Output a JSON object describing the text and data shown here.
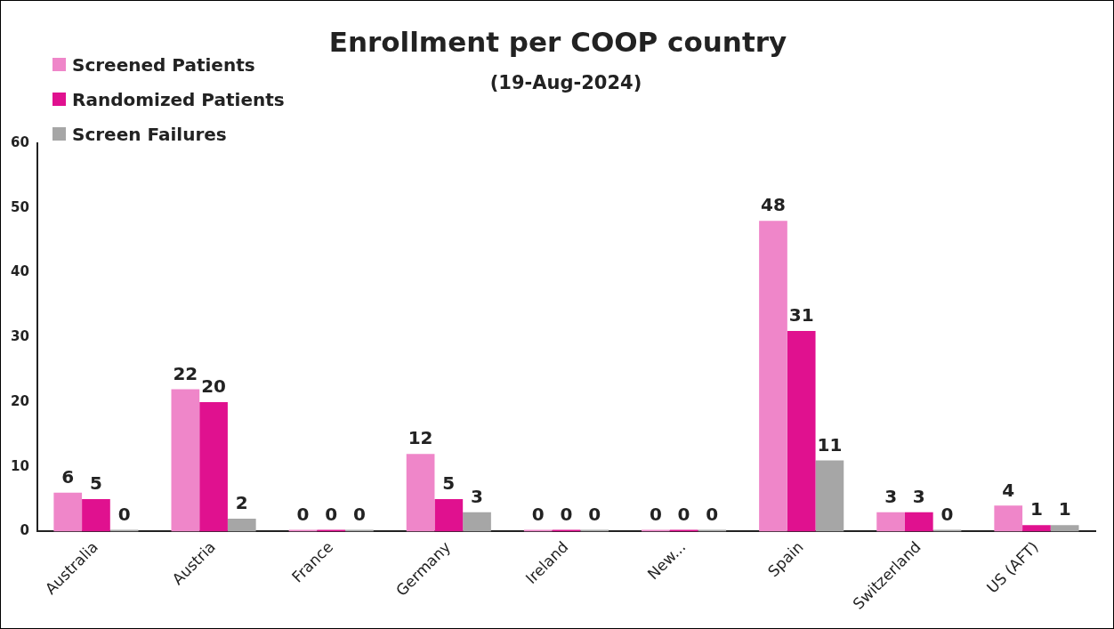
{
  "chart_data": {
    "type": "bar",
    "title": "Enrollment per COOP country",
    "subtitle": "(19-Aug-2024)",
    "categories": [
      "Australia",
      "Austria",
      "France",
      "Germany",
      "Ireland",
      "New...",
      "Spain",
      "Switzerland",
      "US (AFT)"
    ],
    "series": [
      {
        "name": "Screened Patients",
        "color": "#ef86c9",
        "values": [
          6,
          22,
          0,
          12,
          0,
          0,
          48,
          3,
          4
        ]
      },
      {
        "name": "Randomized Patients",
        "color": "#e0118f",
        "values": [
          5,
          20,
          0,
          5,
          0,
          0,
          31,
          3,
          1
        ]
      },
      {
        "name": "Screen Failures",
        "color": "#a6a6a6",
        "values": [
          0,
          2,
          0,
          3,
          0,
          0,
          11,
          0,
          1
        ]
      }
    ],
    "ylim": [
      0,
      60
    ],
    "yticks": [
      0,
      10,
      20,
      30,
      40,
      50,
      60
    ],
    "grid": false,
    "legend": "top left",
    "data_labels": true
  }
}
